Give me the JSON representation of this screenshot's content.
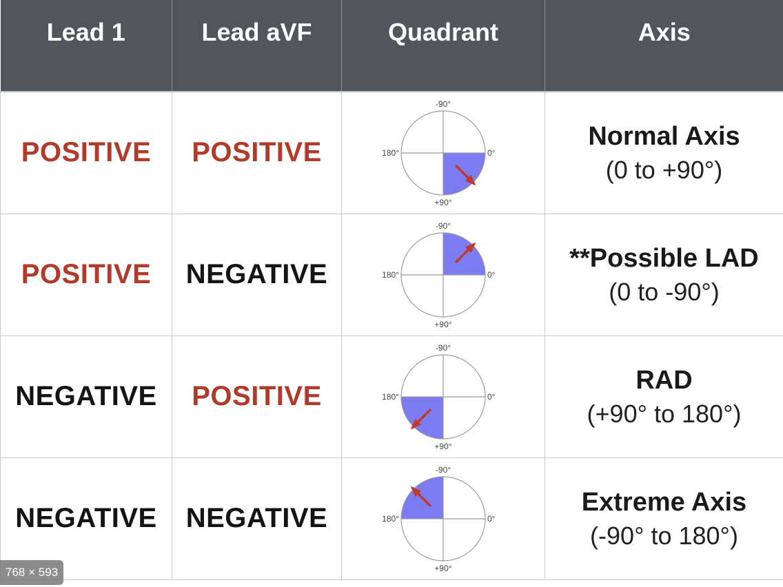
{
  "headers": [
    "Lead 1",
    "Lead aVF",
    "Quadrant",
    "Axis"
  ],
  "diagram_labels": {
    "top": "-90°",
    "bottom": "+90°",
    "left": "180°",
    "right": "0°"
  },
  "colors": {
    "positive": "#b23a2b",
    "negative": "#141414",
    "quadrant_fill": "#7b7cf2",
    "arrow": "#c0392b",
    "header_bg": "#51565c"
  },
  "rows": [
    {
      "lead1": "POSITIVE",
      "lead1_sign": "pos",
      "avf": "POSITIVE",
      "avf_sign": "pos",
      "quadrant": "lower-right",
      "axis_name": "Normal Axis",
      "axis_range": "(0 to +90°)"
    },
    {
      "lead1": "POSITIVE",
      "lead1_sign": "pos",
      "avf": "NEGATIVE",
      "avf_sign": "neg",
      "quadrant": "upper-right",
      "axis_name": "**Possible LAD",
      "axis_range": "(0 to -90°)"
    },
    {
      "lead1": "NEGATIVE",
      "lead1_sign": "neg",
      "avf": "POSITIVE",
      "avf_sign": "pos",
      "quadrant": "lower-left",
      "axis_name": "RAD",
      "axis_range": "(+90° to 180°)"
    },
    {
      "lead1": "NEGATIVE",
      "lead1_sign": "neg",
      "avf": "NEGATIVE",
      "avf_sign": "neg",
      "quadrant": "upper-left",
      "axis_name": "Extreme Axis",
      "axis_range": "(-90° to 180°)"
    }
  ],
  "overlay": {
    "image_size": "768 × 593"
  }
}
